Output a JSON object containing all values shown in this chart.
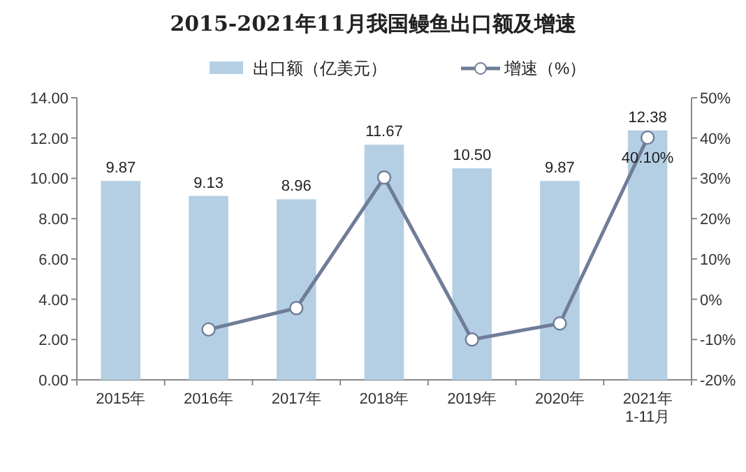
{
  "chart_data": {
    "type": "bar",
    "title": "2015-2021年11月我国鳗鱼出口额及增速",
    "categories": [
      "2015年",
      "2016年",
      "2017年",
      "2018年",
      "2019年",
      "2020年",
      "2021年\n1-11月"
    ],
    "series": [
      {
        "name": "出口额（亿美元）",
        "color": "#b4cfe3",
        "values": [
          9.87,
          9.13,
          8.96,
          11.67,
          10.5,
          9.87,
          12.38
        ],
        "value_labels": [
          "9.87",
          "9.13",
          "8.96",
          "11.67",
          "10.50",
          "9.87",
          "12.38"
        ]
      },
      {
        "name": "增速（%）",
        "type": "line",
        "axis": "y2",
        "color": "#6f7d99",
        "marker": "circle",
        "values": [
          null,
          -7.5,
          -2.2,
          30.2,
          -10.0,
          -6.0,
          40.1
        ],
        "value_labels": [
          null,
          null,
          null,
          null,
          null,
          null,
          "40.10%"
        ]
      }
    ],
    "ylim": [
      0,
      14
    ],
    "yticks": [
      {
        "value": 0,
        "label": "0.00"
      },
      {
        "value": 2,
        "label": "2.00"
      },
      {
        "value": 4,
        "label": "4.00"
      },
      {
        "value": 6,
        "label": "6.00"
      },
      {
        "value": 8,
        "label": "8.00"
      },
      {
        "value": 10,
        "label": "10.00"
      },
      {
        "value": 12,
        "label": "12.00"
      },
      {
        "value": 14,
        "label": "14.00"
      }
    ],
    "y2lim": [
      -20,
      50
    ],
    "y2ticks": [
      {
        "value": -20,
        "label": "-20%"
      },
      {
        "value": -10,
        "label": "-10%"
      },
      {
        "value": 0,
        "label": "0%"
      },
      {
        "value": 10,
        "label": "10%"
      },
      {
        "value": 20,
        "label": "20%"
      },
      {
        "value": 30,
        "label": "30%"
      },
      {
        "value": 40,
        "label": "40%"
      },
      {
        "value": 50,
        "label": "50%"
      }
    ],
    "legend": "top",
    "grid": false
  }
}
